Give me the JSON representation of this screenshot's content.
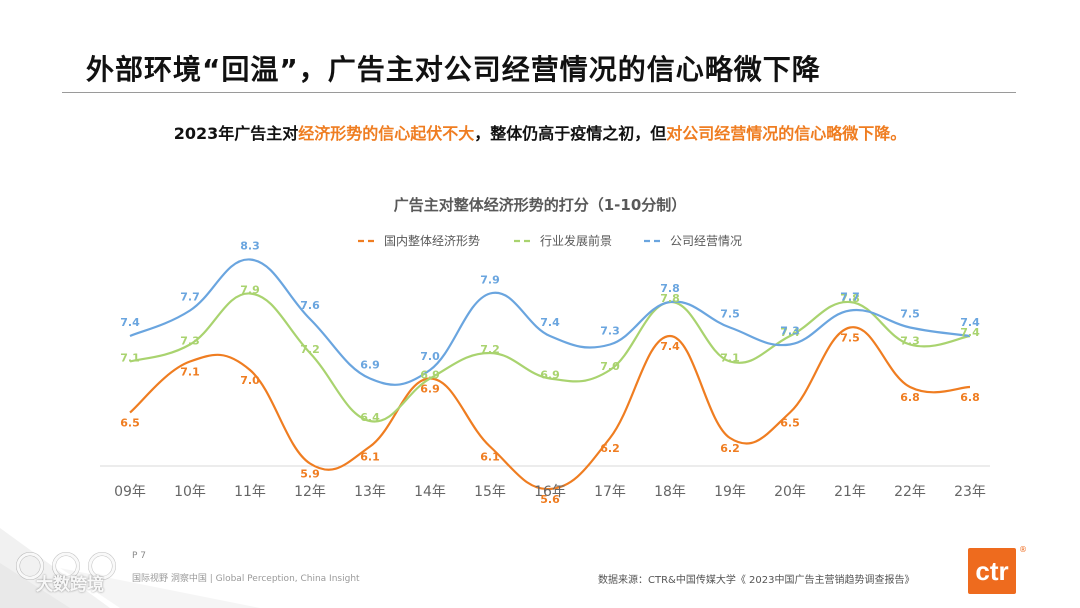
{
  "title": "外部环境“回温”，广告主对公司经营情况的信心略微下降",
  "subtitle": {
    "part1": "2023年广告主对",
    "highlight1": "经济形势的信心起伏不大",
    "part2": "，整体仍高于疫情之初，但",
    "highlight2": "对公司经营情况的信心略微下降。",
    "highlight_color": "#ef7d21"
  },
  "footer": {
    "page": "P 7",
    "tagline": "国际视野 洞察中国 | Global Perception, China Insight",
    "source": "数据来源：CTR&中国传媒大学《 2023中国广告主营销趋势调查报告》",
    "logo": "ctr",
    "logo_mark": "®",
    "watermark": "大数跨境"
  },
  "chart_data": {
    "type": "line",
    "title": "广告主对整体经济形势的打分（1-10分制）",
    "categories": [
      "09年",
      "10年",
      "11年",
      "12年",
      "13年",
      "14年",
      "15年",
      "16年",
      "17年",
      "18年",
      "19年",
      "20年",
      "21年",
      "22年",
      "23年"
    ],
    "ylim": [
      5,
      9
    ],
    "grid": false,
    "legend_position": "top",
    "series": [
      {
        "name": "国内整体经济形势",
        "color": "#ef7d21",
        "values": [
          6.5,
          7.1,
          7.0,
          5.9,
          6.1,
          6.9,
          6.1,
          5.6,
          6.2,
          7.4,
          6.2,
          6.5,
          7.5,
          6.8,
          6.8
        ]
      },
      {
        "name": "行业发展前景",
        "color": "#a9d36f",
        "values": [
          7.1,
          7.3,
          7.9,
          7.2,
          6.4,
          6.9,
          7.2,
          6.9,
          7.0,
          7.8,
          7.1,
          7.4,
          7.8,
          7.3,
          7.4
        ]
      },
      {
        "name": "公司经营情况",
        "color": "#6aa5df",
        "values": [
          7.4,
          7.7,
          8.3,
          7.6,
          6.9,
          7.0,
          7.9,
          7.4,
          7.3,
          7.8,
          7.5,
          7.3,
          7.7,
          7.5,
          7.4
        ]
      }
    ]
  }
}
